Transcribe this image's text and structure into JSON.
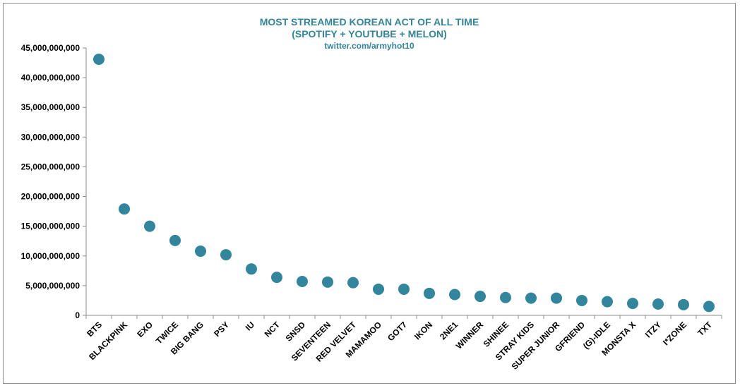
{
  "chart_data": {
    "type": "scatter",
    "title": "MOST STREAMED KOREAN ACT OF ALL TIME",
    "subtitle": "(SPOTIFY + YOUTUBE + MELON)",
    "credit": "twitter.com/armyhot10",
    "xlabel": "",
    "ylabel": "",
    "ylim": [
      0,
      45000000000
    ],
    "y_ticks": [
      0,
      5000000000,
      10000000000,
      15000000000,
      20000000000,
      25000000000,
      30000000000,
      35000000000,
      40000000000,
      45000000000
    ],
    "y_tick_labels": [
      "0",
      "5,000,000,000",
      "10,000,000,000",
      "15,000,000,000",
      "20,000,000,000",
      "25,000,000,000",
      "30,000,000,000",
      "35,000,000,000",
      "40,000,000,000",
      "45,000,000,000"
    ],
    "grid": false,
    "legend": "none",
    "marker_color": "#31859c",
    "categories": [
      "BTS",
      "BLACKPINK",
      "EXO",
      "TWICE",
      "BIG BANG",
      "PSY",
      "IU",
      "NCT",
      "SNSD",
      "SEVENTEEN",
      "RED VELVET",
      "MAMAMOO",
      "GOT7",
      "IKON",
      "2NE1",
      "WINNER",
      "SHINEE",
      "STRAY KIDS",
      "SUPER JUNIOR",
      "GFRIEND",
      "(G)-IDLE",
      "MONSTA X",
      "ITZY",
      "I*ZONE",
      "TXT"
    ],
    "values": [
      43100000000,
      17900000000,
      15000000000,
      12600000000,
      10800000000,
      10200000000,
      7800000000,
      6400000000,
      5700000000,
      5600000000,
      5500000000,
      4400000000,
      4400000000,
      3700000000,
      3500000000,
      3200000000,
      3000000000,
      2900000000,
      2900000000,
      2500000000,
      2300000000,
      2000000000,
      1900000000,
      1800000000,
      1500000000
    ]
  }
}
